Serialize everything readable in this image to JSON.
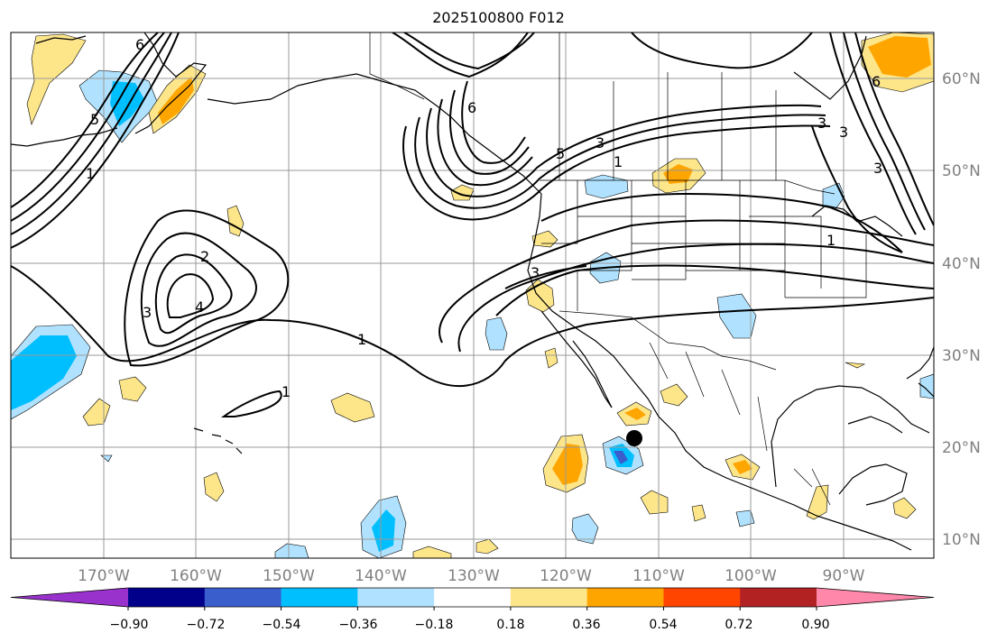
{
  "title": "2025100800 F012",
  "lon_labels": [
    "170°W",
    "160°W",
    "150°W",
    "140°W",
    "130°W",
    "120°W",
    "110°W",
    "100°W",
    "90°W"
  ],
  "lat_labels": [
    "60°N",
    "50°N",
    "40°N",
    "30°N",
    "20°N",
    "10°N"
  ],
  "contour_labels": [
    "1",
    "2",
    "3",
    "4",
    "5",
    "6"
  ],
  "colorbar": {
    "ticks": [
      "−0.90",
      "−0.72",
      "−0.54",
      "−0.36",
      "−0.18",
      "0.18",
      "0.36",
      "0.54",
      "0.72",
      "0.90"
    ],
    "colors": [
      "#9932cc",
      "#00008b",
      "#3a5fcd",
      "#00bfff",
      "#b0e2ff",
      "#ffffff",
      "#fde68a",
      "#ffa500",
      "#ff4500",
      "#b22222",
      "#ff88aa"
    ]
  },
  "colors": {
    "land_line": "#000000",
    "grid": "#999999",
    "light_blue": "#b0e2ff",
    "blue": "#00bfff",
    "dark_blue": "#3a5fcd",
    "light_yellow": "#fde68a",
    "orange": "#ffa500"
  }
}
